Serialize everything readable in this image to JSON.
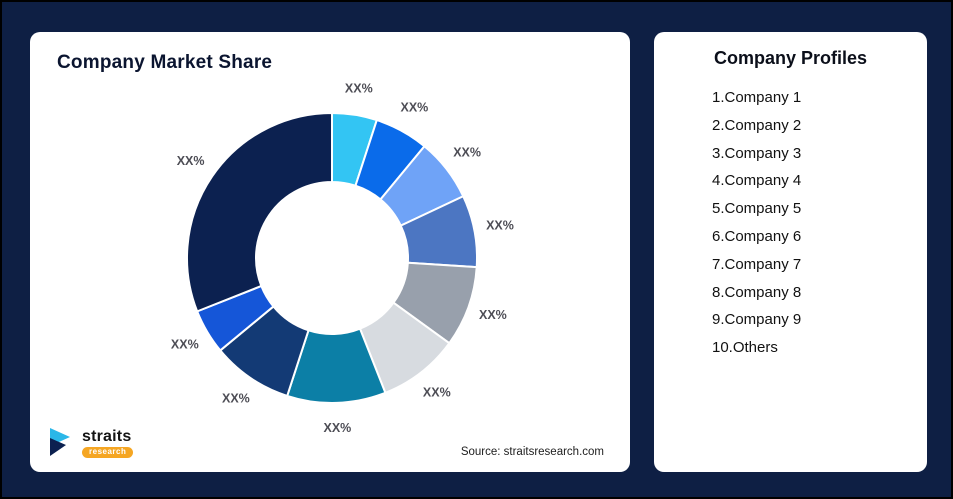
{
  "page": {
    "background_color": "#0E1F44"
  },
  "left_card": {
    "title": "Company Market Share",
    "source": "Source: straitsresearch.com"
  },
  "logo": {
    "text": "straits",
    "sub": "research",
    "icon_color_primary": "#2BB7E8",
    "icon_color_secondary": "#0C2150",
    "sub_bg_color": "#F5A623"
  },
  "right_card": {
    "title": "Company Profiles",
    "items": [
      "1.Company 1",
      "2.Company 2",
      "3.Company 3",
      "4.Company 4",
      "5.Company 5",
      "6.Company 6",
      "7.Company 7",
      "8.Company 8",
      "9.Company 9",
      "10.Others"
    ]
  },
  "chart_data": {
    "type": "pie",
    "donut": true,
    "title": "Company Market Share",
    "labels": [
      "XX%",
      "XX%",
      "XX%",
      "XX%",
      "XX%",
      "XX%",
      "XX%",
      "XX%",
      "XX%",
      "XX%"
    ],
    "values": [
      5,
      6,
      7,
      8,
      9,
      9,
      11,
      9,
      5,
      31
    ],
    "colors": [
      "#33C5F3",
      "#0A6BEA",
      "#6FA3F7",
      "#4C76C2",
      "#98A0AC",
      "#D7DBE0",
      "#0C7FA6",
      "#133A75",
      "#1556D8",
      "#0C2150"
    ],
    "stroke_color": "#FFFFFF",
    "label_color": "#4D4D55",
    "start_angle": 0,
    "legend": "none",
    "source": "Source: straitsresearch.com"
  }
}
